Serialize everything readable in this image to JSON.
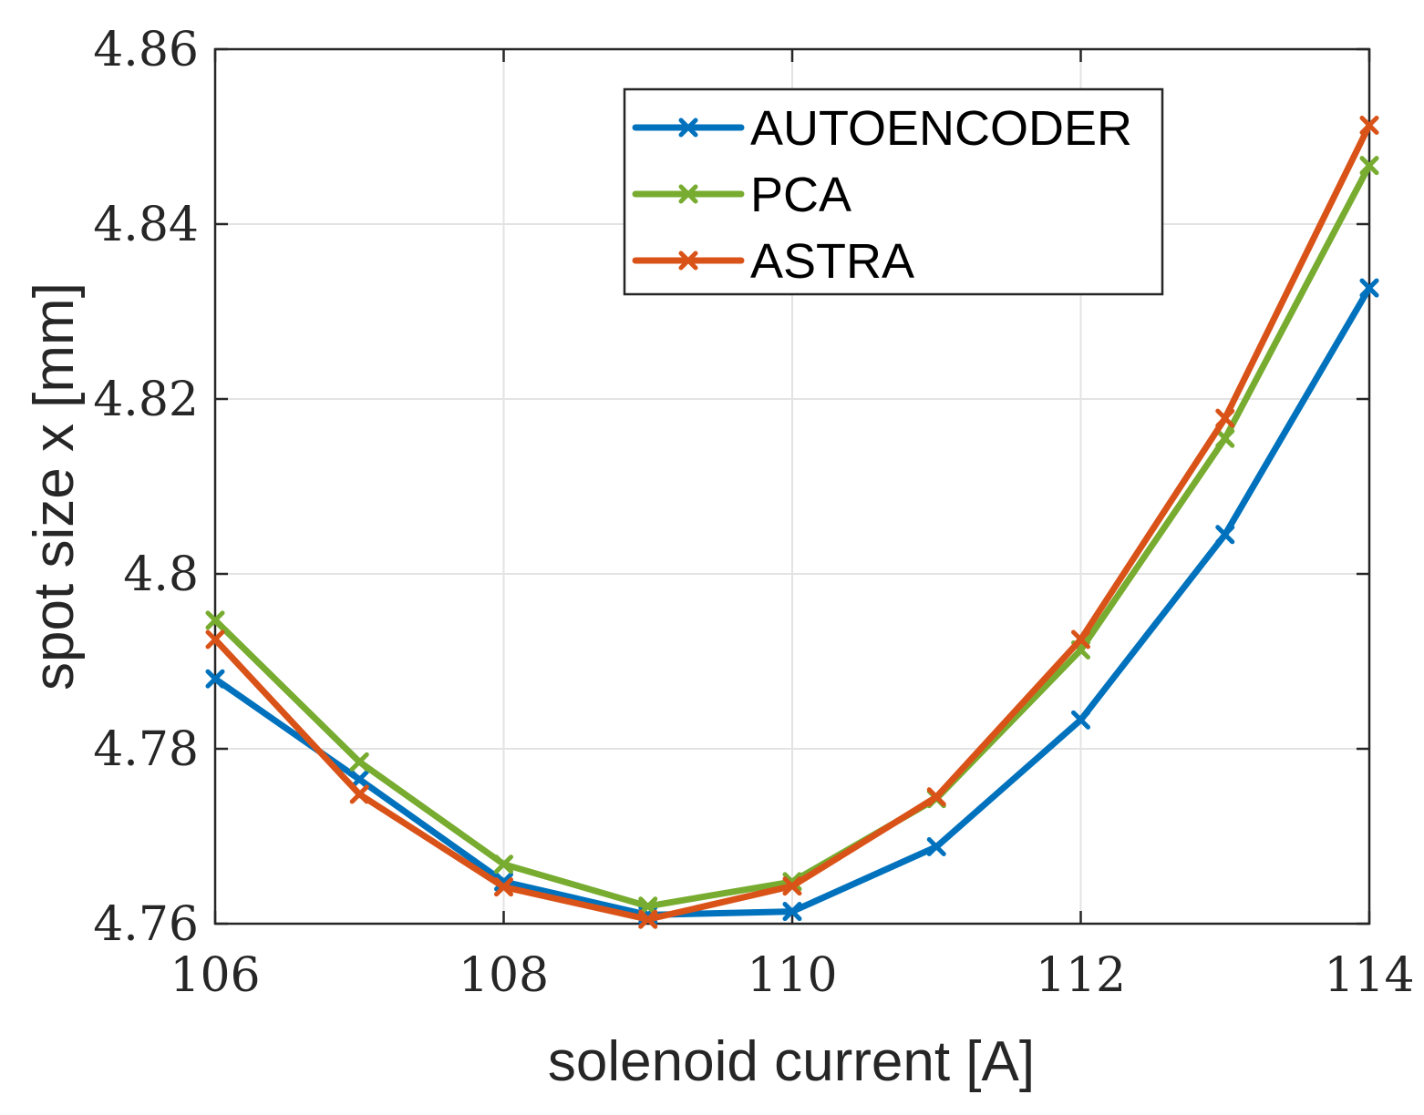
{
  "chart_data": {
    "type": "line",
    "title": "",
    "xlabel": "solenoid current [A]",
    "ylabel": "spot size x [mm]",
    "xlim": [
      106,
      114
    ],
    "ylim": [
      4.76,
      4.86
    ],
    "grid": true,
    "legend_position": "top-right",
    "x": [
      106,
      107,
      108,
      109,
      110,
      111,
      112,
      113,
      114
    ],
    "x_ticks": [
      106,
      108,
      110,
      112,
      114
    ],
    "x_tick_labels": [
      "106",
      "108",
      "110",
      "112",
      "114"
    ],
    "y_ticks": [
      4.76,
      4.78,
      4.8,
      4.82,
      4.84,
      4.86
    ],
    "y_tick_labels": [
      "4.76",
      "4.78",
      "4.8",
      "4.82",
      "4.84",
      "4.86"
    ],
    "series": [
      {
        "name": "AUTOENCODER",
        "color": "#0072BD",
        "marker": "x",
        "values": [
          4.788,
          4.7765,
          4.7648,
          4.761,
          4.7614,
          4.7688,
          4.7833,
          4.8045,
          4.8327
        ]
      },
      {
        "name": "PCA",
        "color": "#77AC30",
        "marker": "x",
        "values": [
          4.7947,
          4.7785,
          4.7668,
          4.762,
          4.7648,
          4.7743,
          4.7913,
          4.8155,
          4.8467
        ]
      },
      {
        "name": "ASTRA",
        "color": "#D95319",
        "marker": "x",
        "values": [
          4.7925,
          4.7748,
          4.7642,
          4.7605,
          4.7643,
          4.7745,
          4.7925,
          4.8178,
          4.8513
        ]
      }
    ]
  }
}
